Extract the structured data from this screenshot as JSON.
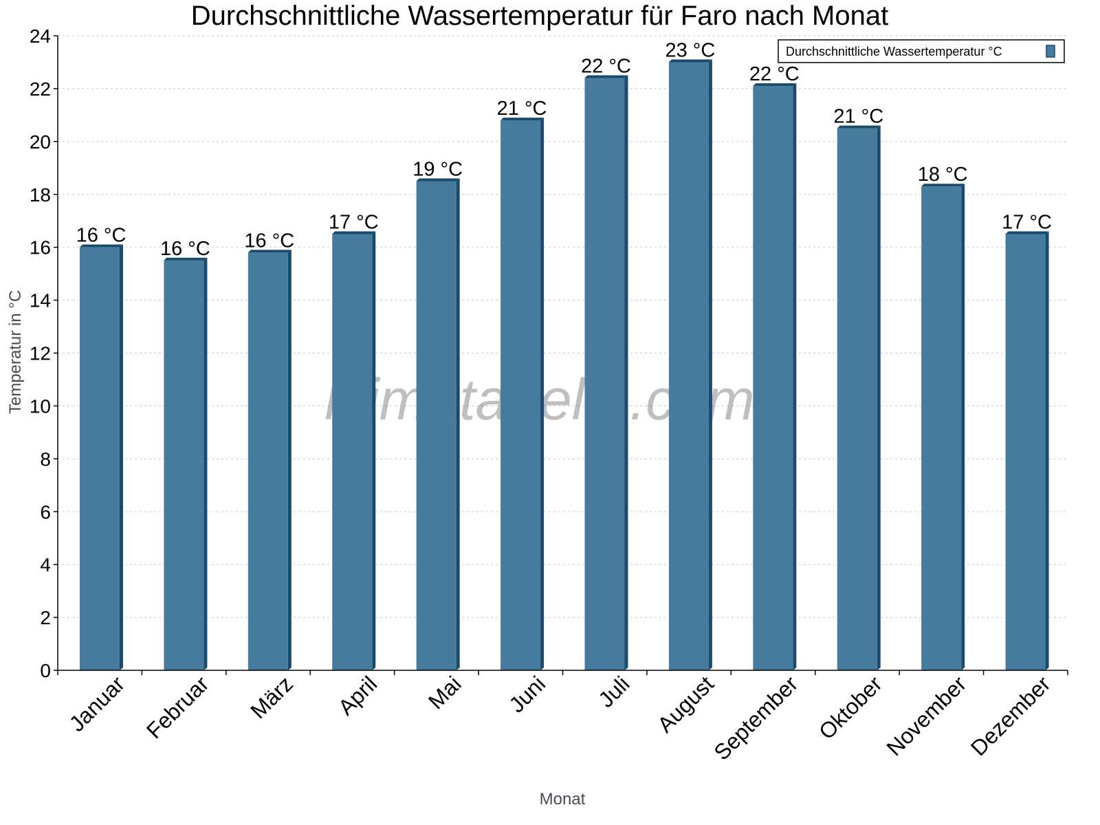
{
  "chart_data": {
    "type": "bar",
    "title": "Durchschnittliche Wassertemperatur für Faro nach Monat",
    "xlabel": "Monat",
    "ylabel": "Temperatur in °C",
    "ylim": [
      0,
      24
    ],
    "yticks": [
      0,
      2,
      4,
      6,
      8,
      10,
      12,
      14,
      16,
      18,
      20,
      22,
      24
    ],
    "grid": true,
    "legend_position": "top-right",
    "categories": [
      "Januar",
      "Februar",
      "März",
      "April",
      "Mai",
      "Juni",
      "Juli",
      "August",
      "September",
      "Oktober",
      "November",
      "Dezember"
    ],
    "series": [
      {
        "name": "Durchschnittliche Wassertemperatur °C",
        "values": [
          16.0,
          15.5,
          15.8,
          16.5,
          18.5,
          20.8,
          22.4,
          23.0,
          22.1,
          20.5,
          18.3,
          16.5
        ],
        "labels": [
          "16 °C",
          "16 °C",
          "16 °C",
          "17 °C",
          "19 °C",
          "21 °C",
          "22 °C",
          "23 °C",
          "22 °C",
          "21 °C",
          "18 °C",
          "17 °C"
        ],
        "color": "#467b9d",
        "shade_color": "#1b4b6c"
      }
    ],
    "watermark": "klimatabelle.com"
  }
}
